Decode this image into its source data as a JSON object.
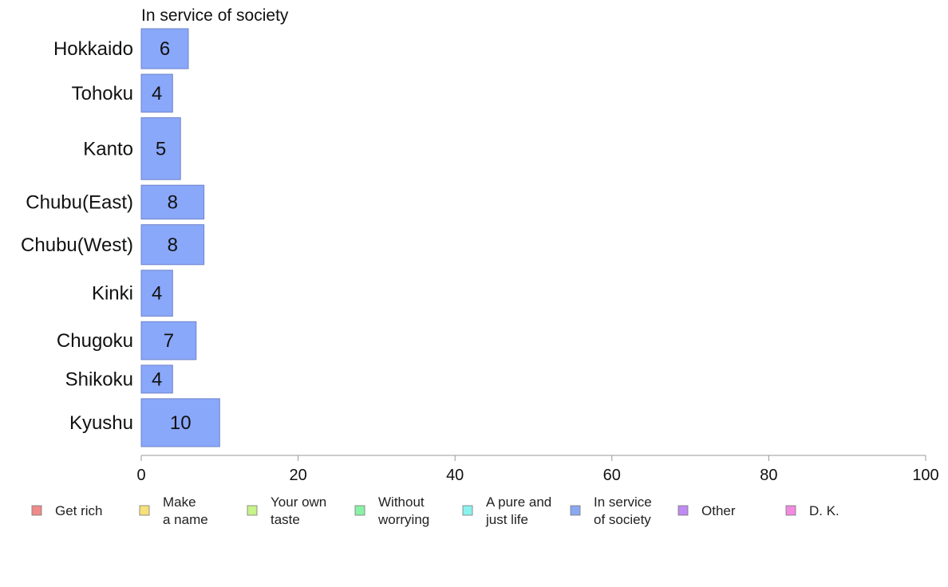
{
  "chart_data": {
    "type": "bar",
    "orientation": "horizontal",
    "title": "In service of society",
    "categories": [
      "Hokkaido",
      "Tohoku",
      "Kanto",
      "Chubu(East)",
      "Chubu(West)",
      "Kinki",
      "Chugoku",
      "Shikoku",
      "Kyushu"
    ],
    "values": [
      6,
      4,
      5,
      8,
      8,
      4,
      7,
      4,
      10
    ],
    "bar_thickness_relative": [
      1.0,
      0.95,
      1.55,
      0.85,
      1.0,
      1.15,
      0.95,
      0.7,
      1.2
    ],
    "xlim": [
      0,
      100
    ],
    "xticks": [
      0,
      20,
      40,
      60,
      80,
      100
    ],
    "xlabel": "",
    "ylabel": "",
    "grid": false,
    "bar_color": "#8aa8fa",
    "bar_stroke": "#6f83c9",
    "legend_placement": "bottom",
    "legend": [
      {
        "lines": [
          "Get rich"
        ],
        "color": "#f08a8a"
      },
      {
        "lines": [
          "Make",
          "a name"
        ],
        "color": "#f7e07a"
      },
      {
        "lines": [
          "Your own",
          "taste"
        ],
        "color": "#c8f28a"
      },
      {
        "lines": [
          "Without",
          "worrying"
        ],
        "color": "#8af2a8"
      },
      {
        "lines": [
          "A pure and",
          "just life"
        ],
        "color": "#8af2ee"
      },
      {
        "lines": [
          "In service",
          "of society"
        ],
        "color": "#8aa8f2"
      },
      {
        "lines": [
          "Other"
        ],
        "color": "#c08af2"
      },
      {
        "lines": [
          "D. K."
        ],
        "color": "#f28ae0"
      }
    ]
  }
}
